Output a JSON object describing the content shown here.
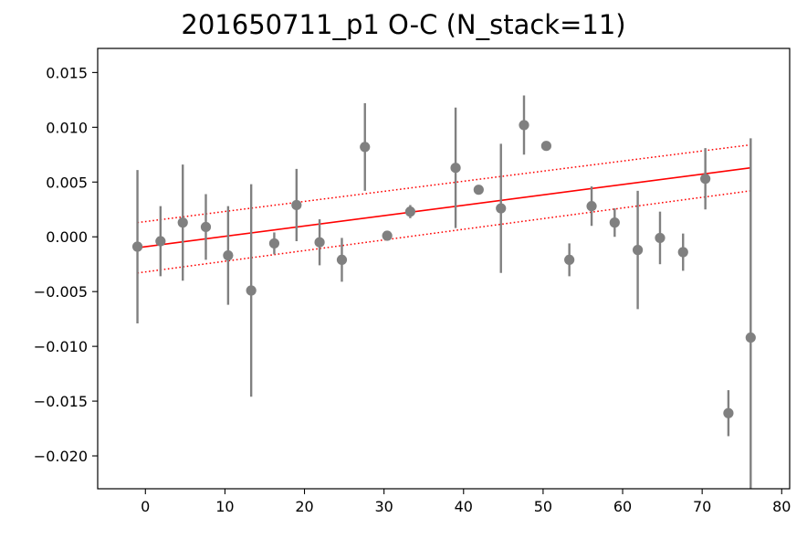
{
  "chart_data": {
    "type": "scatter",
    "title": "201650711_p1 O-C (N_stack=11)",
    "xlabel": "",
    "ylabel": "",
    "xlim": [
      -6,
      81
    ],
    "ylim": [
      -0.023,
      0.0172
    ],
    "xticks": [
      0,
      10,
      20,
      30,
      40,
      50,
      60,
      70,
      80
    ],
    "xtick_labels": [
      "0",
      "10",
      "20",
      "30",
      "40",
      "50",
      "60",
      "70",
      "80"
    ],
    "yticks": [
      0.015,
      0.01,
      0.005,
      0.0,
      -0.005,
      -0.01,
      -0.015,
      -0.02
    ],
    "ytick_labels": [
      "0.015",
      "0.010",
      "0.005",
      "0.000",
      "−0.005",
      "−0.010",
      "−0.015",
      "−0.020"
    ],
    "grid": false,
    "marker_color": "#808080",
    "fit_color": "#ff0000",
    "series": [
      {
        "kind": "errorbar_points",
        "points": [
          {
            "x": -1.0,
            "y": -0.0009,
            "err": 0.007
          },
          {
            "x": 1.9,
            "y": -0.0004,
            "err": 0.0032
          },
          {
            "x": 4.7,
            "y": 0.0013,
            "err": 0.0053
          },
          {
            "x": 7.6,
            "y": 0.0009,
            "err": 0.003
          },
          {
            "x": 10.4,
            "y": -0.0017,
            "err": 0.0045
          },
          {
            "x": 13.3,
            "y": -0.0049,
            "err": 0.0097
          },
          {
            "x": 16.2,
            "y": -0.0006,
            "err": 0.001
          },
          {
            "x": 19.0,
            "y": 0.0029,
            "err": 0.0033
          },
          {
            "x": 21.9,
            "y": -0.0005,
            "err": 0.0021
          },
          {
            "x": 24.7,
            "y": -0.0021,
            "err": 0.002
          },
          {
            "x": 27.6,
            "y": 0.0082,
            "err": 0.004
          },
          {
            "x": 30.4,
            "y": 0.0001,
            "err": 0.0
          },
          {
            "x": 33.3,
            "y": 0.0023,
            "err": 0.0006
          },
          {
            "x": 39.0,
            "y": 0.0063,
            "err": 0.0055
          },
          {
            "x": 41.9,
            "y": 0.0043,
            "err": 0.0
          },
          {
            "x": 44.7,
            "y": 0.0026,
            "err": 0.0059
          },
          {
            "x": 47.6,
            "y": 0.0102,
            "err": 0.0027
          },
          {
            "x": 50.4,
            "y": 0.0083,
            "err": 0.0003
          },
          {
            "x": 53.3,
            "y": -0.0021,
            "err": 0.0015
          },
          {
            "x": 56.1,
            "y": 0.0028,
            "err": 0.0018
          },
          {
            "x": 59.0,
            "y": 0.0013,
            "err": 0.0013
          },
          {
            "x": 61.9,
            "y": -0.0012,
            "err": 0.0054
          },
          {
            "x": 64.7,
            "y": -0.0001,
            "err": 0.0024
          },
          {
            "x": 67.6,
            "y": -0.0014,
            "err": 0.0017
          },
          {
            "x": 70.4,
            "y": 0.0053,
            "err": 0.0028
          },
          {
            "x": 73.3,
            "y": -0.0161,
            "err": 0.0021
          },
          {
            "x": 76.1,
            "y": -0.0092,
            "err": 0.0182
          }
        ]
      },
      {
        "kind": "line",
        "style": "solid",
        "x": [
          -1.0,
          76.1
        ],
        "y": [
          -0.001,
          0.0063
        ]
      },
      {
        "kind": "line",
        "style": "dotted",
        "x": [
          -1.0,
          76.1
        ],
        "y": [
          0.0013,
          0.0084
        ]
      },
      {
        "kind": "line",
        "style": "dotted",
        "x": [
          -1.0,
          76.1
        ],
        "y": [
          -0.0033,
          0.0042
        ]
      }
    ]
  }
}
